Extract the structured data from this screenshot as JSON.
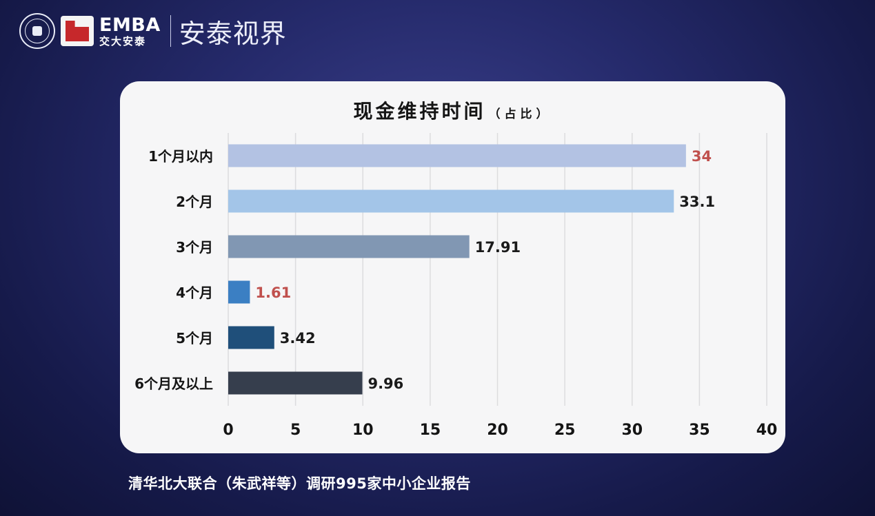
{
  "header": {
    "brand_main": "EMBA",
    "brand_sub": "交大安泰",
    "sub_brand": "安泰视界"
  },
  "source_text": "清华北大联合（朱武祥等）调研995家中小企业报告",
  "chart_data": {
    "type": "bar",
    "orientation": "horizontal",
    "title": "现金维持时间",
    "subtitle": "（占比）",
    "categories": [
      "1个月以内",
      "2个月",
      "3个月",
      "4个月",
      "5个月",
      "6个月及以上"
    ],
    "values": [
      34,
      33.1,
      17.91,
      1.61,
      3.42,
      9.96
    ],
    "value_labels": [
      "34",
      "33.1",
      "17.91",
      "1.61",
      "3.42",
      "9.96"
    ],
    "bar_colors": [
      "#b3c2e3",
      "#a3c5e8",
      "#8197b3",
      "#3b7fc3",
      "#1f4f7a",
      "#363e4d"
    ],
    "label_colors": [
      "#c0504d",
      "#1a1a1a",
      "#1a1a1a",
      "#c0504d",
      "#1a1a1a",
      "#1a1a1a"
    ],
    "xlim": [
      0,
      40
    ],
    "xticks": [
      "0",
      "5",
      "10",
      "15",
      "20",
      "25",
      "30",
      "35",
      "40"
    ],
    "grid": true
  }
}
